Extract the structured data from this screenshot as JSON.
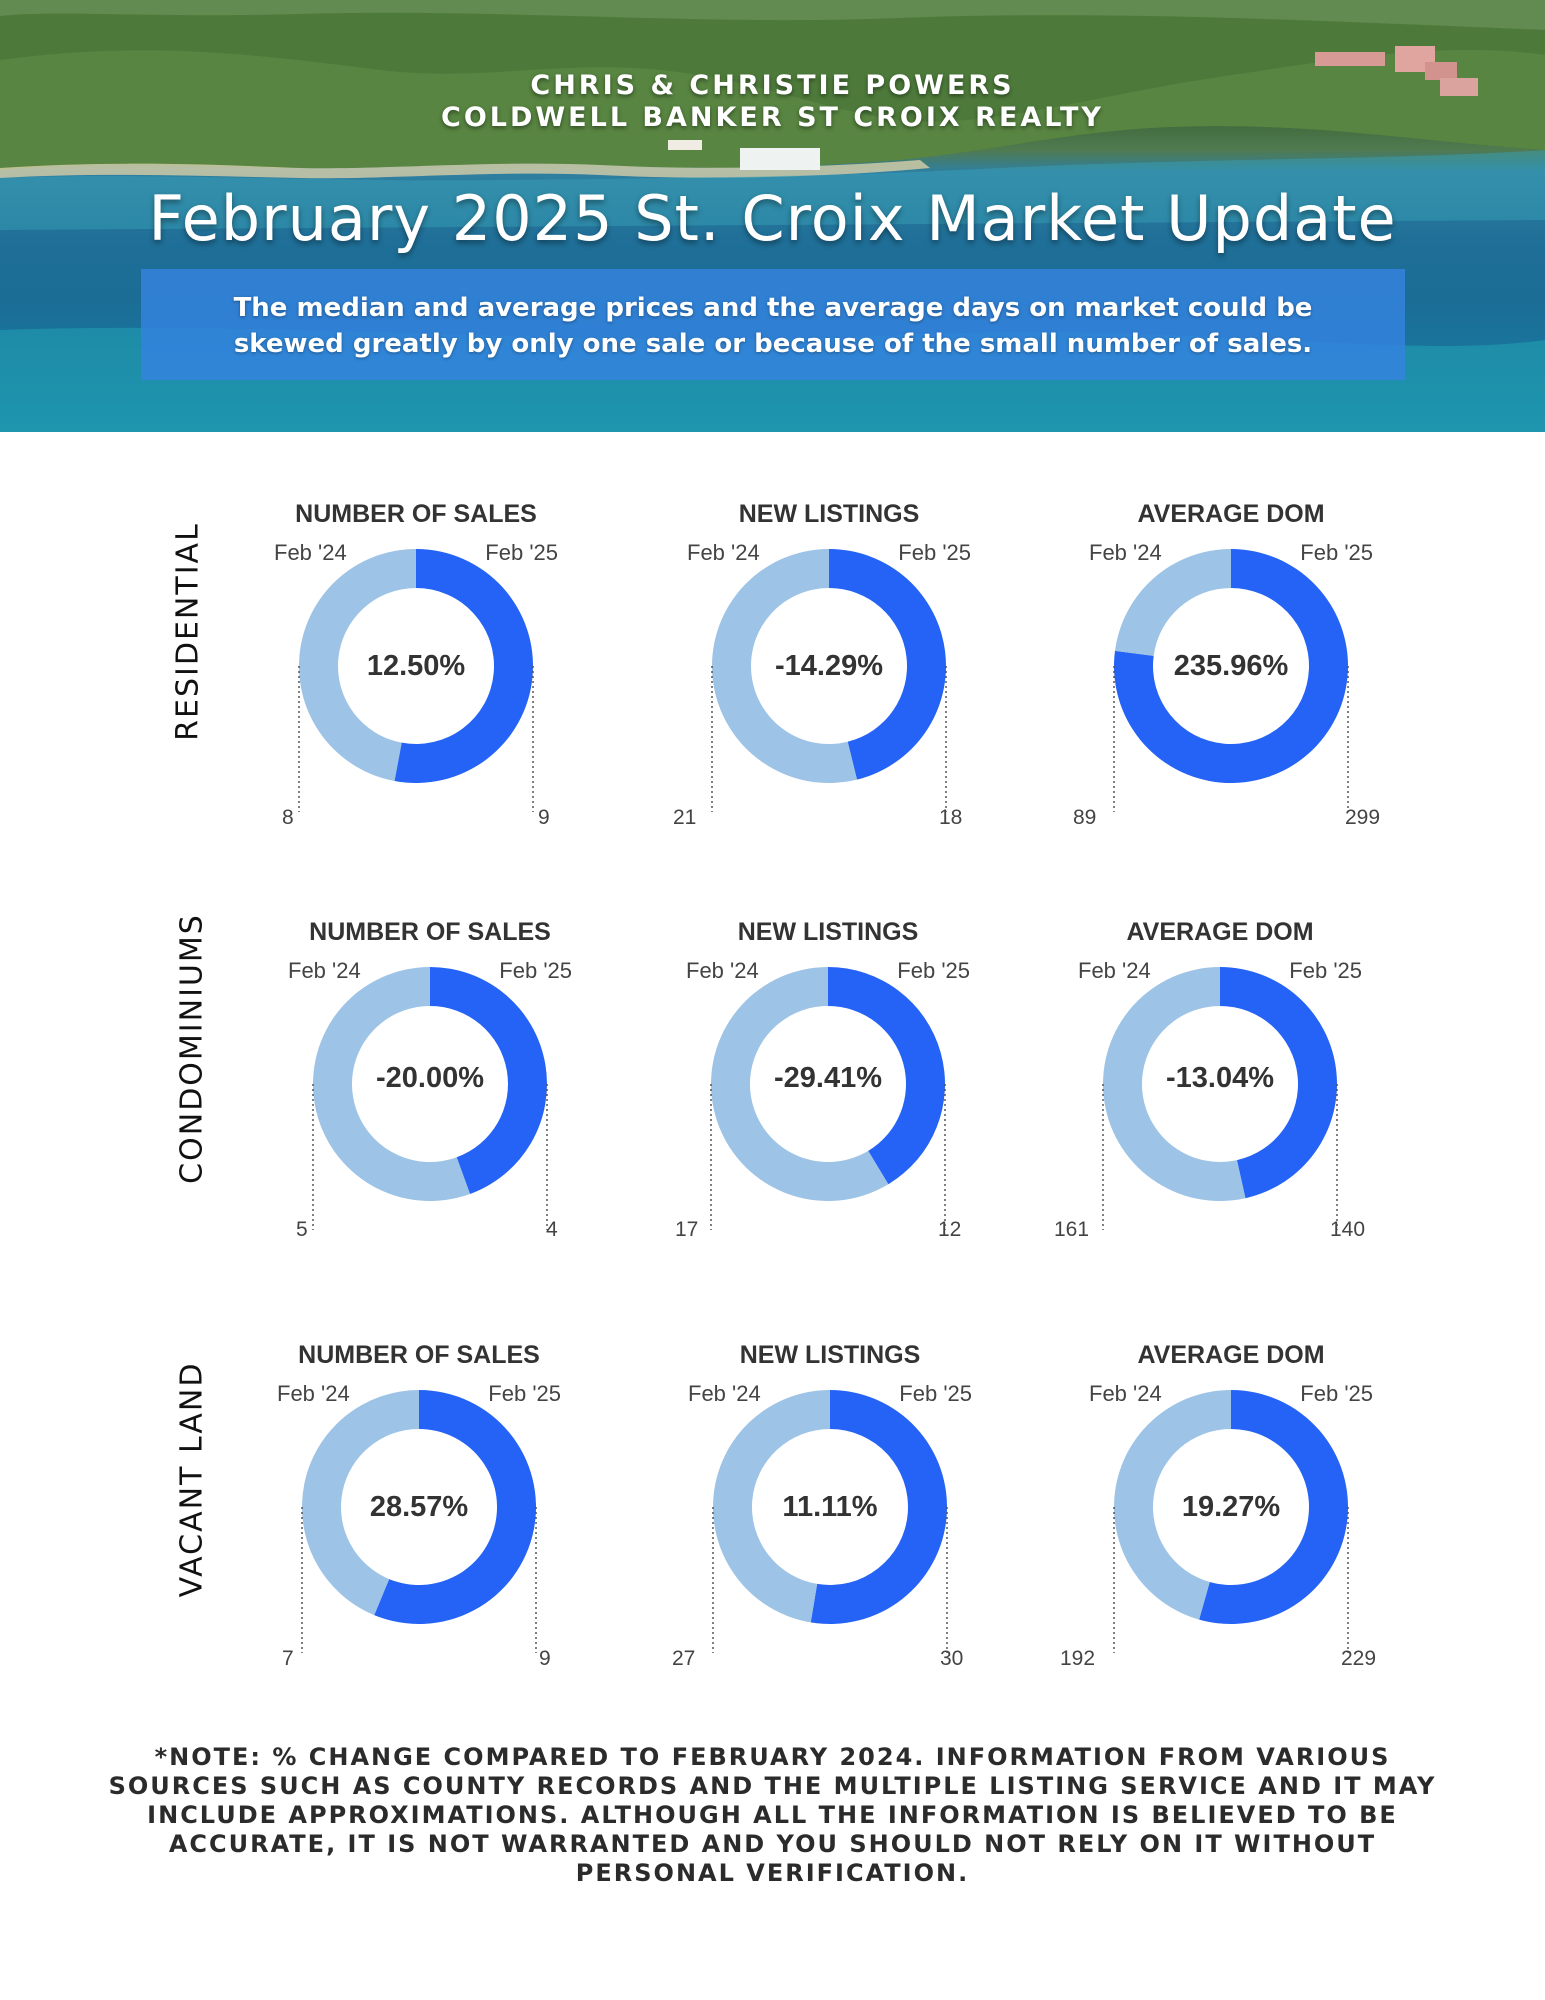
{
  "header": {
    "agent_line": "CHRIS & CHRISTIE POWERS",
    "brokerage_line": "COLDWELL BANKER ST CROIX REALTY",
    "title": "February 2025 St. Croix Market Update",
    "disclaimer_line1": "The median and average prices and  the average days on market could be",
    "disclaimer_line2": "skewed greatly by only one sale or because of the small number of sales."
  },
  "colors": {
    "previous": "#9dc3e6",
    "current": "#2463f6",
    "connector": "#555555"
  },
  "footer_note": "*NOTE: % CHANGE COMPARED TO FEBRUARY 2024. INFORMATION FROM VARIOUS SOURCES SUCH AS COUNTY RECORDS AND THE MULTIPLE LISTING SERVICE AND IT MAY INCLUDE APPROXIMATIONS. ALTHOUGH ALL THE INFORMATION IS BELIEVED TO BE ACCURATE, IT IS NOT WARRANTED AND YOU SHOULD NOT RELY ON IT WITHOUT PERSONAL VERIFICATION.",
  "chart_data": [
    {
      "type": "pie",
      "row": "RESIDENTIAL",
      "title": "NUMBER OF SALES",
      "categories": [
        "Feb '24",
        "Feb '25"
      ],
      "values": [
        8,
        9
      ],
      "center_label": "12.50%"
    },
    {
      "type": "pie",
      "row": "RESIDENTIAL",
      "title": "NEW LISTINGS",
      "categories": [
        "Feb '24",
        "Feb '25"
      ],
      "values": [
        21,
        18
      ],
      "center_label": "-14.29%"
    },
    {
      "type": "pie",
      "row": "RESIDENTIAL",
      "title": "AVERAGE DOM",
      "categories": [
        "Feb '24",
        "Feb '25"
      ],
      "values": [
        89,
        299
      ],
      "center_label": "235.96%"
    },
    {
      "type": "pie",
      "row": "CONDOMINIUMS",
      "title": "NUMBER OF SALES",
      "categories": [
        "Feb '24",
        "Feb '25"
      ],
      "values": [
        5,
        4
      ],
      "center_label": "-20.00%"
    },
    {
      "type": "pie",
      "row": "CONDOMINIUMS",
      "title": "NEW LISTINGS",
      "categories": [
        "Feb '24",
        "Feb '25"
      ],
      "values": [
        17,
        12
      ],
      "center_label": "-29.41%"
    },
    {
      "type": "pie",
      "row": "CONDOMINIUMS",
      "title": "AVERAGE DOM",
      "categories": [
        "Feb '24",
        "Feb '25"
      ],
      "values": [
        161,
        140
      ],
      "center_label": "-13.04%"
    },
    {
      "type": "pie",
      "row": "VACANT LAND",
      "title": "NUMBER OF SALES",
      "categories": [
        "Feb '24",
        "Feb '25"
      ],
      "values": [
        7,
        9
      ],
      "center_label": "28.57%"
    },
    {
      "type": "pie",
      "row": "VACANT LAND",
      "title": "NEW LISTINGS",
      "categories": [
        "Feb '24",
        "Feb '25"
      ],
      "values": [
        27,
        30
      ],
      "center_label": "11.11%"
    },
    {
      "type": "pie",
      "row": "VACANT LAND",
      "title": "AVERAGE DOM",
      "categories": [
        "Feb '24",
        "Feb '25"
      ],
      "values": [
        192,
        229
      ],
      "center_label": "19.27%"
    }
  ]
}
